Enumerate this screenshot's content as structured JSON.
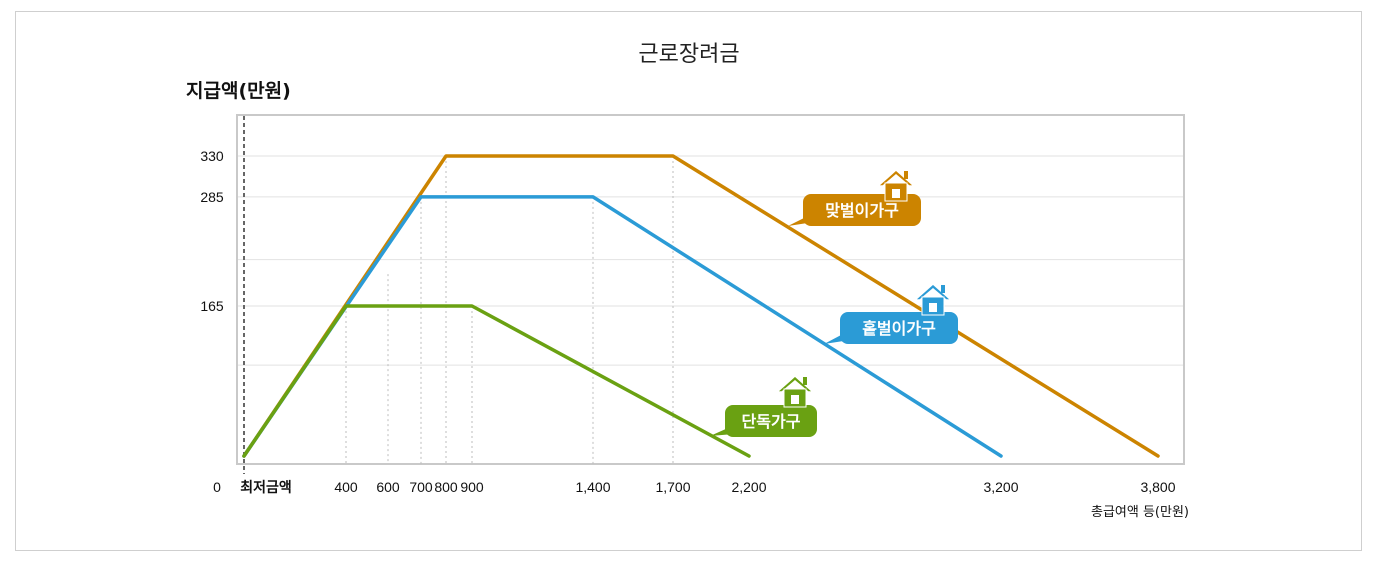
{
  "chart_data": {
    "type": "line",
    "title": "근로장려금",
    "ylabel": "지급액(만원)",
    "xlabel": "총급여액 등(만원)",
    "origin_label": "0",
    "min_wage_label": "최저금액",
    "x_ticks": [
      "400",
      "600",
      "700",
      "800",
      "900",
      "1,400",
      "1,700",
      "2,200",
      "3,200",
      "3,800"
    ],
    "y_ticks": [
      "165",
      "285",
      "330"
    ],
    "series": [
      {
        "name": "맞벌이가구",
        "color": "#cc8400",
        "points": [
          {
            "x": 0,
            "y": 0
          },
          {
            "x": 800,
            "y": 330
          },
          {
            "x": 1700,
            "y": 330
          },
          {
            "x": 3800,
            "y": 0
          }
        ]
      },
      {
        "name": "홑벌이가구",
        "color": "#2b9bd6",
        "points": [
          {
            "x": 0,
            "y": 0
          },
          {
            "x": 700,
            "y": 285
          },
          {
            "x": 1400,
            "y": 285
          },
          {
            "x": 3200,
            "y": 0
          }
        ]
      },
      {
        "name": "단독가구",
        "color": "#6aa112",
        "points": [
          {
            "x": 0,
            "y": 0
          },
          {
            "x": 400,
            "y": 165
          },
          {
            "x": 900,
            "y": 165
          },
          {
            "x": 2200,
            "y": 0
          }
        ]
      }
    ]
  }
}
